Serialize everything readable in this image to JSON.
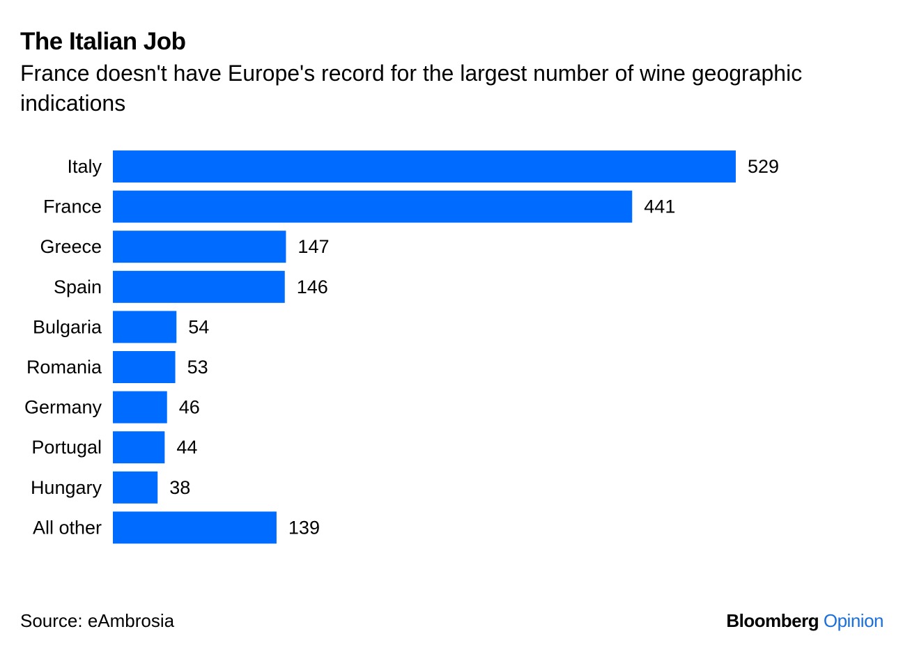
{
  "chart_data": {
    "type": "bar",
    "orientation": "horizontal",
    "title": "The Italian Job",
    "subtitle": "France doesn't have Europe's record for the largest number of wine geographic indications",
    "categories": [
      "Italy",
      "France",
      "Greece",
      "Spain",
      "Bulgaria",
      "Romania",
      "Germany",
      "Portugal",
      "Hungary",
      "All other"
    ],
    "values": [
      529,
      441,
      147,
      146,
      54,
      53,
      46,
      44,
      38,
      139
    ],
    "xlabel": "",
    "ylabel": "",
    "xlim": [
      0,
      529
    ],
    "grid": false,
    "legend": "none",
    "bar_color": "#006cff"
  },
  "footer": {
    "source": "Source: eAmbrosia",
    "brand_name": "Bloomberg",
    "brand_section": "Opinion",
    "brand_section_color": "#1a6fdb"
  }
}
